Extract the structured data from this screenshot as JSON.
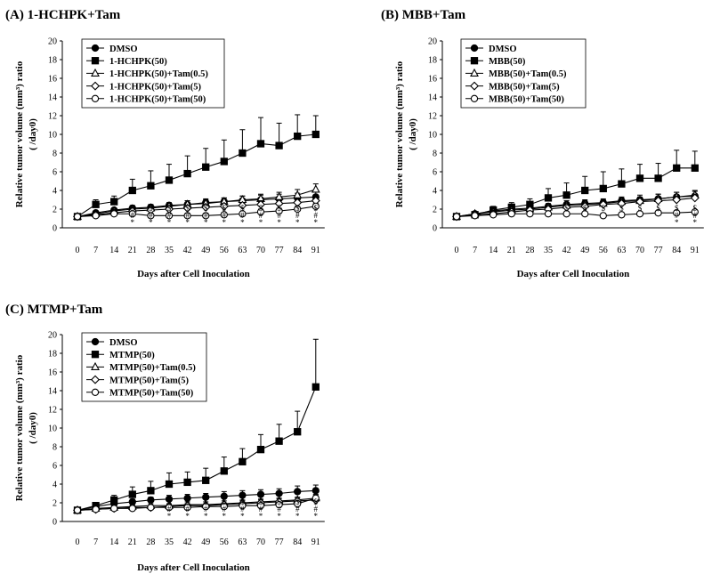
{
  "chart_data": [
    {
      "type": "line",
      "title": "(A) 1-HCHPK+Tam",
      "xlabel": "Days after Cell Inoculation",
      "ylabel": "Relative tumor volume (mm³) ratio",
      "ylabel2": "( /day0)",
      "ylim": [
        0,
        20
      ],
      "x": [
        0,
        7,
        14,
        21,
        28,
        35,
        42,
        49,
        56,
        63,
        70,
        77,
        84,
        91
      ],
      "series": [
        {
          "name": "DMSO",
          "marker": "filled-circle",
          "values": [
            1.2,
            1.6,
            1.9,
            2.1,
            2.2,
            2.4,
            2.5,
            2.7,
            2.8,
            2.9,
            3.0,
            3.1,
            3.2,
            3.3
          ],
          "errors": [
            0.1,
            0.2,
            0.2,
            0.3,
            0.3,
            0.3,
            0.4,
            0.4,
            0.4,
            0.5,
            0.5,
            0.5,
            0.5,
            0.6
          ]
        },
        {
          "name": "1-HCHPK(50)",
          "marker": "filled-square",
          "values": [
            1.2,
            2.5,
            2.8,
            4.0,
            4.5,
            5.1,
            5.8,
            6.5,
            7.1,
            8.0,
            9.0,
            8.8,
            9.8,
            10.0
          ],
          "errors": [
            0.1,
            0.5,
            0.6,
            1.2,
            1.6,
            1.7,
            1.9,
            2.0,
            2.3,
            2.5,
            2.8,
            2.4,
            2.3,
            2.0
          ]
        },
        {
          "name": "1-HCHPK(50)+Tam(0.5)",
          "marker": "open-triangle",
          "values": [
            1.2,
            1.5,
            1.8,
            2.0,
            2.1,
            2.3,
            2.5,
            2.6,
            2.8,
            3.0,
            3.1,
            3.3,
            3.5,
            4.1
          ],
          "errors": [
            0.1,
            0.2,
            0.2,
            0.3,
            0.3,
            0.3,
            0.4,
            0.4,
            0.4,
            0.4,
            0.5,
            0.5,
            0.6,
            0.6
          ]
        },
        {
          "name": "1-HCHPK(50)+Tam(5)",
          "marker": "open-diamond",
          "values": [
            1.2,
            1.4,
            1.6,
            1.8,
            1.9,
            2.0,
            2.1,
            2.2,
            2.3,
            2.4,
            2.5,
            2.6,
            2.7,
            2.9
          ],
          "errors": [
            0.1,
            0.2,
            0.2,
            0.2,
            0.2,
            0.3,
            0.3,
            0.3,
            0.3,
            0.3,
            0.4,
            0.4,
            0.4,
            0.4
          ]
        },
        {
          "name": "1-HCHPK(50)+Tam(50)",
          "marker": "open-circle",
          "values": [
            1.2,
            1.3,
            1.5,
            1.5,
            1.3,
            1.3,
            1.3,
            1.3,
            1.4,
            1.5,
            1.7,
            1.8,
            2.0,
            2.3
          ],
          "errors": [
            0.1,
            0.1,
            0.2,
            0.2,
            0.2,
            0.2,
            0.2,
            0.2,
            0.2,
            0.2,
            0.3,
            0.3,
            0.3,
            0.3
          ]
        }
      ],
      "annotations": [
        {
          "x": 21,
          "text": "$ # *"
        },
        {
          "x": 28,
          "text": "$ # *"
        },
        {
          "x": 35,
          "text": "$ # *"
        },
        {
          "x": 42,
          "text": "$ # *"
        },
        {
          "x": 49,
          "text": "$ # *"
        },
        {
          "x": 56,
          "text": "$ # *"
        },
        {
          "x": 63,
          "text": "$ # *"
        },
        {
          "x": 70,
          "text": "$ # *"
        },
        {
          "x": 77,
          "text": "$ # *"
        },
        {
          "x": 84,
          "text": "$ # *"
        },
        {
          "x": 91,
          "text": "$ # *"
        }
      ],
      "legend": "top-left"
    },
    {
      "type": "line",
      "title": "(B) MBB+Tam",
      "xlabel": "Days after Cell Inoculation",
      "ylabel": "Relative tumor volume (mm³) ratio",
      "ylabel2": "( /day0)",
      "ylim": [
        0,
        20
      ],
      "x": [
        0,
        7,
        14,
        21,
        28,
        35,
        42,
        49,
        56,
        63,
        70,
        77,
        84,
        91
      ],
      "series": [
        {
          "name": "DMSO",
          "marker": "filled-circle",
          "values": [
            1.2,
            1.5,
            1.8,
            2.0,
            2.1,
            2.3,
            2.5,
            2.6,
            2.7,
            2.9,
            3.0,
            3.1,
            3.3,
            3.4
          ],
          "errors": [
            0.1,
            0.2,
            0.2,
            0.3,
            0.3,
            0.3,
            0.4,
            0.4,
            0.4,
            0.4,
            0.5,
            0.5,
            0.5,
            0.5
          ]
        },
        {
          "name": "MBB(50)",
          "marker": "filled-square",
          "values": [
            1.2,
            1.4,
            1.9,
            2.2,
            2.5,
            3.2,
            3.5,
            4.0,
            4.2,
            4.7,
            5.3,
            5.3,
            6.4,
            6.4
          ],
          "errors": [
            0.1,
            0.2,
            0.4,
            0.5,
            0.6,
            1.0,
            1.3,
            1.5,
            1.8,
            1.6,
            1.5,
            1.6,
            1.9,
            1.8
          ]
        },
        {
          "name": "MBB(50)+Tam(0.5)",
          "marker": "open-triangle",
          "values": [
            1.2,
            1.5,
            1.7,
            1.9,
            2.0,
            2.2,
            2.4,
            2.5,
            2.6,
            2.8,
            2.9,
            3.1,
            3.3,
            3.5
          ],
          "errors": [
            0.1,
            0.2,
            0.2,
            0.2,
            0.3,
            0.3,
            0.3,
            0.4,
            0.4,
            0.4,
            0.4,
            0.5,
            0.5,
            0.5
          ]
        },
        {
          "name": "MBB(50)+Tam(5)",
          "marker": "open-diamond",
          "values": [
            1.2,
            1.4,
            1.5,
            1.7,
            1.9,
            2.0,
            2.2,
            2.3,
            2.5,
            2.6,
            2.8,
            2.9,
            3.0,
            3.2
          ],
          "errors": [
            0.1,
            0.1,
            0.2,
            0.2,
            0.2,
            0.3,
            0.3,
            0.3,
            0.3,
            0.3,
            0.4,
            0.4,
            0.4,
            0.4
          ]
        },
        {
          "name": "MBB(50)+Tam(50)",
          "marker": "open-circle",
          "values": [
            1.2,
            1.3,
            1.4,
            1.5,
            1.5,
            1.5,
            1.5,
            1.5,
            1.3,
            1.4,
            1.5,
            1.6,
            1.6,
            1.7
          ],
          "errors": [
            0.1,
            0.1,
            0.2,
            0.2,
            0.2,
            0.2,
            0.2,
            0.2,
            0.2,
            0.2,
            0.2,
            0.2,
            0.2,
            0.2
          ]
        }
      ],
      "annotations": [
        {
          "x": 42,
          "text": "$"
        },
        {
          "x": 49,
          "text": "$"
        },
        {
          "x": 56,
          "text": "$"
        },
        {
          "x": 63,
          "text": "$"
        },
        {
          "x": 70,
          "text": "$"
        },
        {
          "x": 77,
          "text": "$"
        },
        {
          "x": 84,
          "text": "$ # *"
        },
        {
          "x": 91,
          "text": "$ # *"
        }
      ],
      "legend": "top-left"
    },
    {
      "type": "line",
      "title": "(C) MTMP+Tam",
      "xlabel": "Days after Cell Inoculation",
      "ylabel": "Relative tumor volume (mm³) ratio",
      "ylabel2": "( /day0)",
      "ylim": [
        0,
        20
      ],
      "x": [
        0,
        7,
        14,
        21,
        28,
        35,
        42,
        49,
        56,
        63,
        70,
        77,
        84,
        91
      ],
      "series": [
        {
          "name": "DMSO",
          "marker": "filled-circle",
          "values": [
            1.2,
            1.6,
            1.9,
            2.1,
            2.3,
            2.4,
            2.5,
            2.6,
            2.7,
            2.8,
            2.9,
            3.0,
            3.2,
            3.3
          ],
          "errors": [
            0.1,
            0.2,
            0.2,
            0.3,
            0.3,
            0.4,
            0.4,
            0.4,
            0.5,
            0.5,
            0.5,
            0.5,
            0.6,
            0.6
          ]
        },
        {
          "name": "MTMP(50)",
          "marker": "filled-square",
          "values": [
            1.2,
            1.7,
            2.3,
            2.9,
            3.3,
            4.0,
            4.2,
            4.4,
            5.4,
            6.4,
            7.7,
            8.6,
            9.6,
            14.4
          ],
          "errors": [
            0.1,
            0.3,
            0.5,
            0.8,
            1.0,
            1.2,
            1.1,
            1.3,
            1.5,
            1.4,
            1.6,
            1.8,
            2.2,
            5.1
          ]
        },
        {
          "name": "MTMP(50)+Tam(0.5)",
          "marker": "open-triangle",
          "values": [
            1.2,
            1.4,
            1.5,
            1.6,
            1.7,
            1.7,
            1.8,
            1.8,
            1.9,
            2.0,
            2.1,
            2.2,
            2.3,
            2.5
          ],
          "errors": [
            0.1,
            0.2,
            0.2,
            0.2,
            0.2,
            0.2,
            0.3,
            0.3,
            0.3,
            0.3,
            0.3,
            0.3,
            0.3,
            0.3
          ]
        },
        {
          "name": "MTMP(50)+Tam(5)",
          "marker": "open-diamond",
          "values": [
            1.2,
            1.3,
            1.4,
            1.5,
            1.5,
            1.6,
            1.7,
            1.7,
            1.8,
            1.9,
            2.0,
            2.1,
            2.2,
            2.3
          ],
          "errors": [
            0.1,
            0.1,
            0.2,
            0.2,
            0.2,
            0.2,
            0.2,
            0.2,
            0.2,
            0.3,
            0.3,
            0.3,
            0.3,
            0.3
          ]
        },
        {
          "name": "MTMP(50)+Tam(50)",
          "marker": "open-circle",
          "values": [
            1.2,
            1.3,
            1.4,
            1.4,
            1.5,
            1.5,
            1.5,
            1.6,
            1.6,
            1.7,
            1.7,
            1.8,
            1.9,
            2.5
          ],
          "errors": [
            0.1,
            0.1,
            0.1,
            0.2,
            0.2,
            0.2,
            0.2,
            0.2,
            0.2,
            0.2,
            0.2,
            0.2,
            0.3,
            0.4
          ]
        }
      ],
      "annotations": [
        {
          "x": 35,
          "text": "$ # *"
        },
        {
          "x": 42,
          "text": "$ # *"
        },
        {
          "x": 49,
          "text": "$ # *"
        },
        {
          "x": 56,
          "text": "$ # *"
        },
        {
          "x": 63,
          "text": "$ # *"
        },
        {
          "x": 70,
          "text": "$ # *"
        },
        {
          "x": 77,
          "text": "$ # *"
        },
        {
          "x": 84,
          "text": "$ # *"
        },
        {
          "x": 91,
          "text": "$ # *"
        }
      ],
      "legend": "top-left"
    }
  ]
}
